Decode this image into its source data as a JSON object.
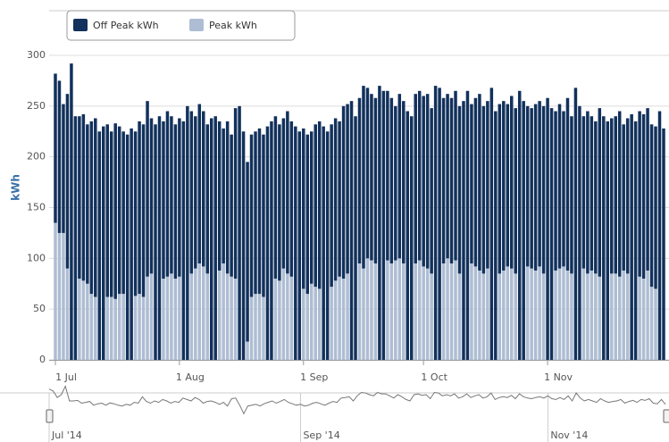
{
  "chart_data": {
    "type": "stacked-bar",
    "y_label": "kWh",
    "x": [
      "2014-07-01",
      "2014-07-02",
      "2014-07-03",
      "2014-07-04",
      "2014-07-05",
      "2014-07-06",
      "2014-07-07",
      "2014-07-08",
      "2014-07-09",
      "2014-07-10",
      "2014-07-11",
      "2014-07-12",
      "2014-07-13",
      "2014-07-14",
      "2014-07-15",
      "2014-07-16",
      "2014-07-17",
      "2014-07-18",
      "2014-07-19",
      "2014-07-20",
      "2014-07-21",
      "2014-07-22",
      "2014-07-23",
      "2014-07-24",
      "2014-07-25",
      "2014-07-26",
      "2014-07-27",
      "2014-07-28",
      "2014-07-29",
      "2014-07-30",
      "2014-07-31",
      "2014-08-01",
      "2014-08-02",
      "2014-08-03",
      "2014-08-04",
      "2014-08-05",
      "2014-08-06",
      "2014-08-07",
      "2014-08-08",
      "2014-08-09",
      "2014-08-10",
      "2014-08-11",
      "2014-08-12",
      "2014-08-13",
      "2014-08-14",
      "2014-08-15",
      "2014-08-16",
      "2014-08-17",
      "2014-08-18",
      "2014-08-19",
      "2014-08-20",
      "2014-08-21",
      "2014-08-22",
      "2014-08-23",
      "2014-08-24",
      "2014-08-25",
      "2014-08-26",
      "2014-08-27",
      "2014-08-28",
      "2014-08-29",
      "2014-08-30",
      "2014-08-31",
      "2014-09-01",
      "2014-09-02",
      "2014-09-03",
      "2014-09-04",
      "2014-09-05",
      "2014-09-06",
      "2014-09-07",
      "2014-09-08",
      "2014-09-09",
      "2014-09-10",
      "2014-09-11",
      "2014-09-12",
      "2014-09-13",
      "2014-09-14",
      "2014-09-15",
      "2014-09-16",
      "2014-09-17",
      "2014-09-18",
      "2014-09-19",
      "2014-09-20",
      "2014-09-21",
      "2014-09-22",
      "2014-09-23",
      "2014-09-24",
      "2014-09-25",
      "2014-09-26",
      "2014-09-27",
      "2014-09-28",
      "2014-09-29",
      "2014-09-30",
      "2014-10-01",
      "2014-10-02",
      "2014-10-03",
      "2014-10-04",
      "2014-10-05",
      "2014-10-06",
      "2014-10-07",
      "2014-10-08",
      "2014-10-09",
      "2014-10-10",
      "2014-10-11",
      "2014-10-12",
      "2014-10-13",
      "2014-10-14",
      "2014-10-15",
      "2014-10-16",
      "2014-10-17",
      "2014-10-18",
      "2014-10-19",
      "2014-10-20",
      "2014-10-21",
      "2014-10-22",
      "2014-10-23",
      "2014-10-24",
      "2014-10-25",
      "2014-10-26",
      "2014-10-27",
      "2014-10-28",
      "2014-10-29",
      "2014-10-30",
      "2014-10-31",
      "2014-11-01",
      "2014-11-02",
      "2014-11-03",
      "2014-11-04",
      "2014-11-05",
      "2014-11-06",
      "2014-11-07",
      "2014-11-08",
      "2014-11-09",
      "2014-11-10",
      "2014-11-11",
      "2014-11-12",
      "2014-11-13",
      "2014-11-14",
      "2014-11-15",
      "2014-11-16",
      "2014-11-17",
      "2014-11-18",
      "2014-11-19",
      "2014-11-20",
      "2014-11-21",
      "2014-11-22",
      "2014-11-23",
      "2014-11-24",
      "2014-11-25",
      "2014-11-26",
      "2014-11-27",
      "2014-11-28",
      "2014-11-29",
      "2014-11-30"
    ],
    "series": [
      {
        "name": "Off Peak kWh",
        "color": "#12315c",
        "values": [
          147,
          150,
          127,
          172,
          292,
          240,
          160,
          164,
          157,
          170,
          176,
          225,
          230,
          170,
          163,
          173,
          165,
          160,
          222,
          228,
          162,
          170,
          170,
          173,
          153,
          232,
          240,
          155,
          163,
          155,
          152,
          156,
          235,
          250,
          160,
          150,
          157,
          153,
          147,
          238,
          240,
          147,
          133,
          150,
          140,
          168,
          250,
          225,
          177,
          160,
          160,
          163,
          160,
          230,
          235,
          160,
          154,
          148,
          160,
          153,
          230,
          225,
          158,
          157,
          150,
          160,
          165,
          230,
          225,
          160,
          160,
          153,
          170,
          167,
          255,
          240,
          163,
          180,
          168,
          164,
          163,
          270,
          265,
          167,
          163,
          152,
          162,
          160,
          245,
          240,
          167,
          167,
          168,
          172,
          163,
          270,
          268,
          163,
          162,
          163,
          167,
          165,
          255,
          265,
          157,
          166,
          174,
          165,
          165,
          268,
          245,
          167,
          167,
          160,
          170,
          163,
          265,
          255,
          158,
          158,
          164,
          163,
          165,
          258,
          248,
          157,
          162,
          153,
          170,
          155,
          268,
          250,
          150,
          160,
          152,
          150,
          166,
          240,
          235,
          153,
          155,
          163,
          144,
          153,
          242,
          235,
          163,
          162,
          160,
          160,
          160,
          245,
          228
        ]
      },
      {
        "name": "Peak kWh",
        "color": "#aebdd3",
        "values": [
          135,
          125,
          125,
          90,
          0,
          0,
          80,
          78,
          75,
          65,
          62,
          0,
          0,
          62,
          62,
          60,
          65,
          65,
          0,
          0,
          63,
          65,
          62,
          82,
          85,
          0,
          0,
          80,
          82,
          85,
          80,
          82,
          0,
          0,
          85,
          90,
          95,
          92,
          85,
          0,
          0,
          88,
          95,
          85,
          82,
          80,
          0,
          0,
          18,
          62,
          65,
          65,
          62,
          0,
          0,
          80,
          78,
          90,
          85,
          82,
          0,
          0,
          70,
          65,
          75,
          72,
          70,
          0,
          0,
          72,
          78,
          82,
          80,
          85,
          0,
          0,
          95,
          90,
          100,
          98,
          95,
          0,
          0,
          98,
          95,
          98,
          100,
          95,
          0,
          0,
          95,
          98,
          92,
          90,
          85,
          0,
          0,
          95,
          100,
          95,
          98,
          85,
          0,
          0,
          95,
          92,
          88,
          85,
          90,
          0,
          0,
          85,
          88,
          92,
          90,
          85,
          0,
          0,
          92,
          90,
          88,
          92,
          85,
          0,
          0,
          88,
          90,
          92,
          88,
          85,
          0,
          0,
          90,
          85,
          88,
          85,
          82,
          0,
          0,
          85,
          85,
          82,
          88,
          85,
          0,
          0,
          82,
          80,
          88,
          72,
          70,
          0,
          0
        ]
      }
    ],
    "ylim": [
      0,
      300
    ],
    "yticks": [
      0,
      50,
      100,
      150,
      200,
      250,
      300
    ],
    "grid": true,
    "xticks": [
      {
        "value": "2014-07-01",
        "label": "1 Jul"
      },
      {
        "value": "2014-08-01",
        "label": "1 Aug"
      },
      {
        "value": "2014-09-01",
        "label": "1 Sep"
      },
      {
        "value": "2014-10-01",
        "label": "1 Oct"
      },
      {
        "value": "2014-11-01",
        "label": "1 Nov"
      }
    ],
    "navigator_ticks": [
      {
        "value": "2014-07-01",
        "label": "Jul '14"
      },
      {
        "value": "2014-09-01",
        "label": "Sep '14"
      },
      {
        "value": "2014-11-01",
        "label": "Nov '14"
      }
    ],
    "legend": "top-left"
  }
}
